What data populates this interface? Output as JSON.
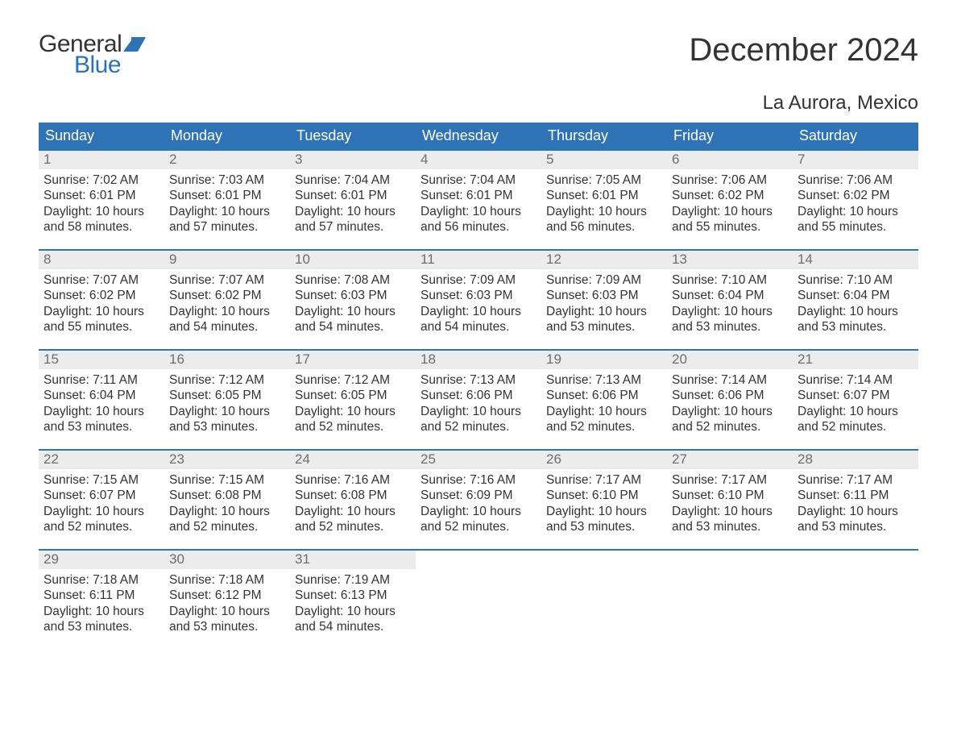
{
  "brand": {
    "word1": "General",
    "word2": "Blue",
    "word1_color": "#333333",
    "word2_color": "#2d73b5",
    "flag_color": "#2d73b5"
  },
  "title": "December 2024",
  "location": "La Aurora, Mexico",
  "colors": {
    "header_bg": "#2d73b5",
    "header_text": "#ffffff",
    "week_border": "#2d73b5",
    "daynum_bg": "#ececec",
    "daynum_text": "#6e6e6e",
    "body_text": "#333333",
    "background": "#ffffff"
  },
  "typography": {
    "title_fontsize": 40,
    "location_fontsize": 24,
    "weekday_fontsize": 18,
    "daynum_fontsize": 17,
    "info_fontsize": 15.5,
    "logo_fontsize": 30
  },
  "layout": {
    "columns": 7,
    "rows": 5,
    "day_cell_min_height": 122
  },
  "weekdays": [
    "Sunday",
    "Monday",
    "Tuesday",
    "Wednesday",
    "Thursday",
    "Friday",
    "Saturday"
  ],
  "labels": {
    "sunrise": "Sunrise:",
    "sunset": "Sunset:",
    "daylight": "Daylight:"
  },
  "weeks": [
    [
      {
        "day": "1",
        "sunrise": "7:02 AM",
        "sunset": "6:01 PM",
        "daylight": "10 hours and 58 minutes."
      },
      {
        "day": "2",
        "sunrise": "7:03 AM",
        "sunset": "6:01 PM",
        "daylight": "10 hours and 57 minutes."
      },
      {
        "day": "3",
        "sunrise": "7:04 AM",
        "sunset": "6:01 PM",
        "daylight": "10 hours and 57 minutes."
      },
      {
        "day": "4",
        "sunrise": "7:04 AM",
        "sunset": "6:01 PM",
        "daylight": "10 hours and 56 minutes."
      },
      {
        "day": "5",
        "sunrise": "7:05 AM",
        "sunset": "6:01 PM",
        "daylight": "10 hours and 56 minutes."
      },
      {
        "day": "6",
        "sunrise": "7:06 AM",
        "sunset": "6:02 PM",
        "daylight": "10 hours and 55 minutes."
      },
      {
        "day": "7",
        "sunrise": "7:06 AM",
        "sunset": "6:02 PM",
        "daylight": "10 hours and 55 minutes."
      }
    ],
    [
      {
        "day": "8",
        "sunrise": "7:07 AM",
        "sunset": "6:02 PM",
        "daylight": "10 hours and 55 minutes."
      },
      {
        "day": "9",
        "sunrise": "7:07 AM",
        "sunset": "6:02 PM",
        "daylight": "10 hours and 54 minutes."
      },
      {
        "day": "10",
        "sunrise": "7:08 AM",
        "sunset": "6:03 PM",
        "daylight": "10 hours and 54 minutes."
      },
      {
        "day": "11",
        "sunrise": "7:09 AM",
        "sunset": "6:03 PM",
        "daylight": "10 hours and 54 minutes."
      },
      {
        "day": "12",
        "sunrise": "7:09 AM",
        "sunset": "6:03 PM",
        "daylight": "10 hours and 53 minutes."
      },
      {
        "day": "13",
        "sunrise": "7:10 AM",
        "sunset": "6:04 PM",
        "daylight": "10 hours and 53 minutes."
      },
      {
        "day": "14",
        "sunrise": "7:10 AM",
        "sunset": "6:04 PM",
        "daylight": "10 hours and 53 minutes."
      }
    ],
    [
      {
        "day": "15",
        "sunrise": "7:11 AM",
        "sunset": "6:04 PM",
        "daylight": "10 hours and 53 minutes."
      },
      {
        "day": "16",
        "sunrise": "7:12 AM",
        "sunset": "6:05 PM",
        "daylight": "10 hours and 53 minutes."
      },
      {
        "day": "17",
        "sunrise": "7:12 AM",
        "sunset": "6:05 PM",
        "daylight": "10 hours and 52 minutes."
      },
      {
        "day": "18",
        "sunrise": "7:13 AM",
        "sunset": "6:06 PM",
        "daylight": "10 hours and 52 minutes."
      },
      {
        "day": "19",
        "sunrise": "7:13 AM",
        "sunset": "6:06 PM",
        "daylight": "10 hours and 52 minutes."
      },
      {
        "day": "20",
        "sunrise": "7:14 AM",
        "sunset": "6:06 PM",
        "daylight": "10 hours and 52 minutes."
      },
      {
        "day": "21",
        "sunrise": "7:14 AM",
        "sunset": "6:07 PM",
        "daylight": "10 hours and 52 minutes."
      }
    ],
    [
      {
        "day": "22",
        "sunrise": "7:15 AM",
        "sunset": "6:07 PM",
        "daylight": "10 hours and 52 minutes."
      },
      {
        "day": "23",
        "sunrise": "7:15 AM",
        "sunset": "6:08 PM",
        "daylight": "10 hours and 52 minutes."
      },
      {
        "day": "24",
        "sunrise": "7:16 AM",
        "sunset": "6:08 PM",
        "daylight": "10 hours and 52 minutes."
      },
      {
        "day": "25",
        "sunrise": "7:16 AM",
        "sunset": "6:09 PM",
        "daylight": "10 hours and 52 minutes."
      },
      {
        "day": "26",
        "sunrise": "7:17 AM",
        "sunset": "6:10 PM",
        "daylight": "10 hours and 53 minutes."
      },
      {
        "day": "27",
        "sunrise": "7:17 AM",
        "sunset": "6:10 PM",
        "daylight": "10 hours and 53 minutes."
      },
      {
        "day": "28",
        "sunrise": "7:17 AM",
        "sunset": "6:11 PM",
        "daylight": "10 hours and 53 minutes."
      }
    ],
    [
      {
        "day": "29",
        "sunrise": "7:18 AM",
        "sunset": "6:11 PM",
        "daylight": "10 hours and 53 minutes."
      },
      {
        "day": "30",
        "sunrise": "7:18 AM",
        "sunset": "6:12 PM",
        "daylight": "10 hours and 53 minutes."
      },
      {
        "day": "31",
        "sunrise": "7:19 AM",
        "sunset": "6:13 PM",
        "daylight": "10 hours and 54 minutes."
      },
      null,
      null,
      null,
      null
    ]
  ]
}
